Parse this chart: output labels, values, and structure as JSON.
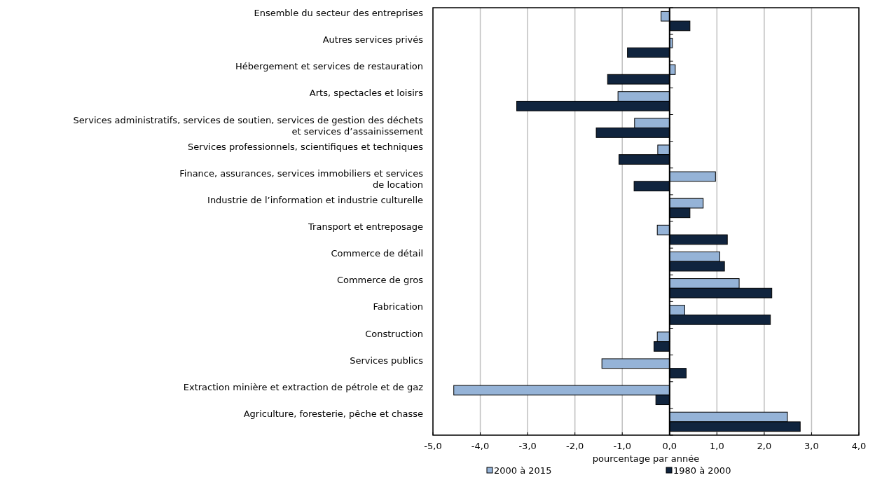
{
  "chart_data": {
    "type": "bar",
    "orientation": "horizontal",
    "xlabel": "pourcentage par année",
    "categories": [
      "Ensemble du secteur des entreprises",
      "Autres services privés",
      "Hébergement et services de restauration",
      "Arts, spectacles et loisirs",
      "Services administratifs, services de soutien, services de gestion des déchets\net services d’assainissement",
      "Services professionnels, scientifiques et techniques",
      "Finance, assurances, services immobiliers et services\nde location",
      "Industrie de l’information et industrie culturelle",
      "Transport et entreposage",
      "Commerce de détail",
      "Commerce de gros",
      "Fabrication",
      "Construction",
      "Services publics",
      "Extraction minière et extraction de pétrole et de gaz",
      "Agriculture, foresterie, pêche et chasse"
    ],
    "series": [
      {
        "name": "2000 à 2015",
        "color": "#95b3d7",
        "values": [
          -0.18,
          0.06,
          0.12,
          -1.09,
          -0.74,
          -0.25,
          0.97,
          0.71,
          -0.26,
          1.06,
          1.47,
          0.32,
          -0.26,
          -1.43,
          -4.56,
          2.49
        ]
      },
      {
        "name": "1980 à 2000",
        "color": "#10243e",
        "values": [
          0.43,
          -0.89,
          -1.31,
          -3.23,
          -1.55,
          -1.07,
          -0.75,
          0.43,
          1.22,
          1.16,
          2.16,
          2.13,
          -0.33,
          0.35,
          -0.29,
          2.76
        ]
      }
    ],
    "xlim": [
      -5,
      4
    ],
    "xticks": [
      {
        "value": -5,
        "label": "-5,0"
      },
      {
        "value": -4,
        "label": "-4,0"
      },
      {
        "value": -3,
        "label": "-3,0"
      },
      {
        "value": -2,
        "label": "-2,0"
      },
      {
        "value": -1,
        "label": "-1,0"
      },
      {
        "value": 0,
        "label": "0,0"
      },
      {
        "value": 1,
        "label": "1,0"
      },
      {
        "value": 2,
        "label": "2,0"
      },
      {
        "value": 3,
        "label": "3,0"
      },
      {
        "value": 4,
        "label": "4,0"
      }
    ],
    "grid": "x",
    "legend": "bottom"
  }
}
